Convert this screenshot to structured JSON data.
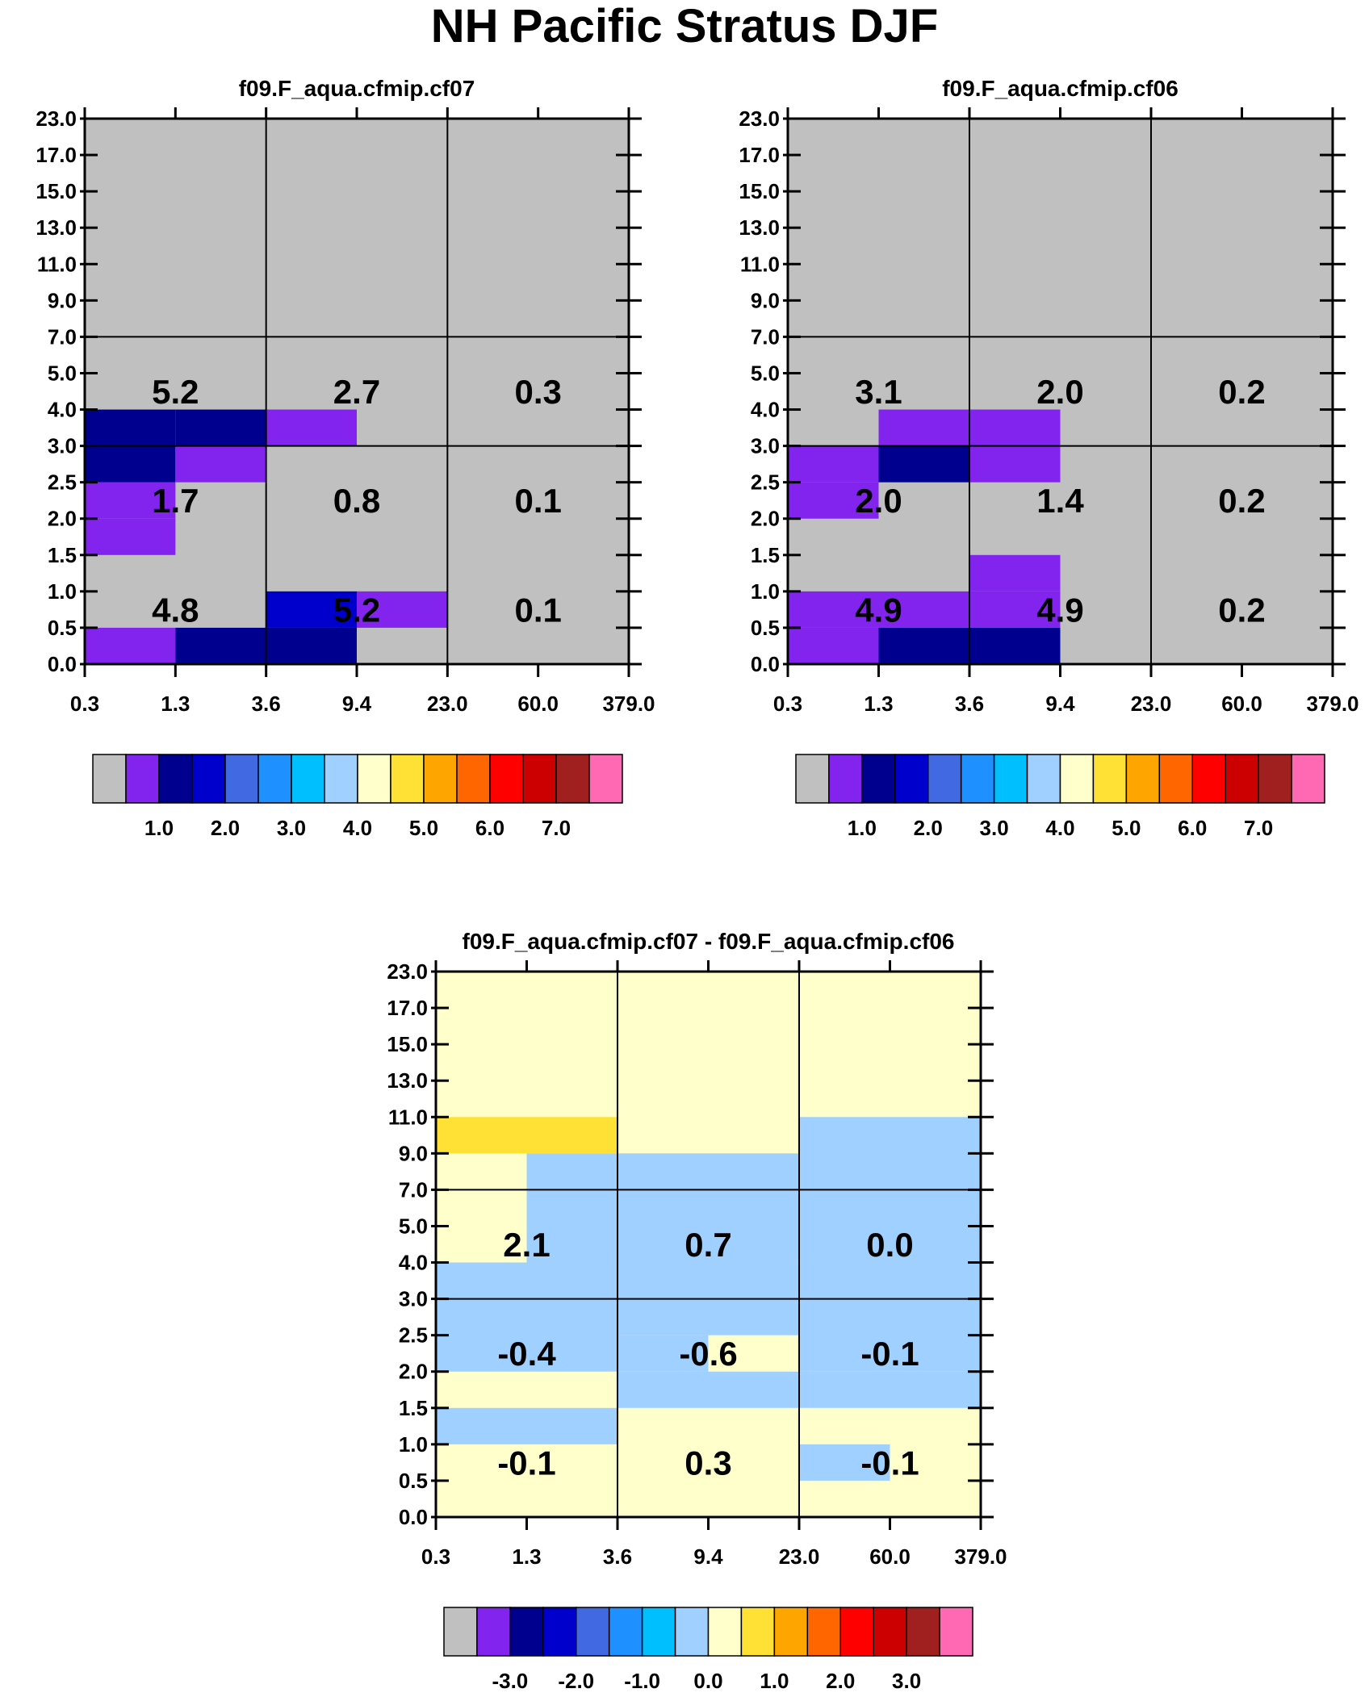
{
  "figure_title": "NH Pacific Stratus DJF",
  "y_tick_labels": [
    "0.0",
    "0.5",
    "1.0",
    "1.5",
    "2.0",
    "2.5",
    "3.0",
    "4.0",
    "5.0",
    "7.0",
    "9.0",
    "11.0",
    "13.0",
    "15.0",
    "17.0",
    "23.0"
  ],
  "x_tick_labels": [
    "0.3",
    "1.3",
    "3.6",
    "9.4",
    "23.0",
    "60.0",
    "379.0"
  ],
  "colors": {
    "fill_value": "#c0c0c0",
    "abs_palette": [
      "#c0c0c0",
      "#8224ee",
      "#00008f",
      "#0000cd",
      "#4169e1",
      "#1e90ff",
      "#00bfff",
      "#a0d0ff",
      "#ffffcc",
      "#ffe135",
      "#ffa500",
      "#ff6600",
      "#ff0000",
      "#cc0000",
      "#a02020",
      "#ff69b4"
    ],
    "diff_palette": [
      "#c0c0c0",
      "#8224ee",
      "#00008f",
      "#0000cd",
      "#4169e1",
      "#1e90ff",
      "#00bfff",
      "#a0d0ff",
      "#ffffcc",
      "#ffe135",
      "#ffa500",
      "#ff6600",
      "#ff0000",
      "#cc0000",
      "#a02020",
      "#ff69b4"
    ]
  },
  "chart_data": [
    {
      "type": "heatmap",
      "title": "f09.F_aqua.cfmip.cf07",
      "x_bins": [
        "0.3",
        "1.3",
        "3.6",
        "9.4",
        "23.0",
        "60.0",
        "379.0"
      ],
      "y_bins": [
        "0.0",
        "0.5",
        "1.0",
        "1.5",
        "2.0",
        "2.5",
        "3.0",
        "4.0",
        "5.0",
        "7.0",
        "9.0",
        "11.0",
        "13.0",
        "15.0",
        "17.0",
        "23.0"
      ],
      "colored_cells": [
        {
          "x": [
            0,
            1
          ],
          "y": [
            0,
            1
          ],
          "level": 1
        },
        {
          "x": [
            1,
            2
          ],
          "y": [
            0,
            1
          ],
          "level": 2
        },
        {
          "x": [
            2,
            3
          ],
          "y": [
            0,
            1
          ],
          "level": 2
        },
        {
          "x": [
            2,
            3
          ],
          "y": [
            1,
            2
          ],
          "level": 3
        },
        {
          "x": [
            3,
            4
          ],
          "y": [
            1,
            2
          ],
          "level": 1
        },
        {
          "x": [
            0,
            1
          ],
          "y": [
            3,
            4
          ],
          "level": 1
        },
        {
          "x": [
            0,
            1
          ],
          "y": [
            4,
            5
          ],
          "level": 1
        },
        {
          "x": [
            0,
            1
          ],
          "y": [
            5,
            6
          ],
          "level": 2
        },
        {
          "x": [
            1,
            2
          ],
          "y": [
            5,
            6
          ],
          "level": 1
        },
        {
          "x": [
            0,
            1
          ],
          "y": [
            6,
            7
          ],
          "level": 2
        },
        {
          "x": [
            1,
            2
          ],
          "y": [
            6,
            7
          ],
          "level": 2
        },
        {
          "x": [
            2,
            3
          ],
          "y": [
            6,
            7
          ],
          "level": 1
        }
      ],
      "block_values": [
        {
          "cx": 0,
          "cy": 2,
          "value": "5.2"
        },
        {
          "cx": 1,
          "cy": 2,
          "value": "2.7"
        },
        {
          "cx": 2,
          "cy": 2,
          "value": "0.3"
        },
        {
          "cx": 0,
          "cy": 1,
          "value": "1.7"
        },
        {
          "cx": 1,
          "cy": 1,
          "value": "0.8"
        },
        {
          "cx": 2,
          "cy": 1,
          "value": "0.1"
        },
        {
          "cx": 0,
          "cy": 0,
          "value": "4.8"
        },
        {
          "cx": 1,
          "cy": 0,
          "value": "5.2"
        },
        {
          "cx": 2,
          "cy": 0,
          "value": "0.1"
        }
      ],
      "colorbar_labels": [
        "1.0",
        "2.0",
        "3.0",
        "4.0",
        "5.0",
        "6.0",
        "7.0"
      ]
    },
    {
      "type": "heatmap",
      "title": "f09.F_aqua.cfmip.cf06",
      "x_bins": [
        "0.3",
        "1.3",
        "3.6",
        "9.4",
        "23.0",
        "60.0",
        "379.0"
      ],
      "y_bins": [
        "0.0",
        "0.5",
        "1.0",
        "1.5",
        "2.0",
        "2.5",
        "3.0",
        "4.0",
        "5.0",
        "7.0",
        "9.0",
        "11.0",
        "13.0",
        "15.0",
        "17.0",
        "23.0"
      ],
      "colored_cells": [
        {
          "x": [
            0,
            1
          ],
          "y": [
            0,
            1
          ],
          "level": 1
        },
        {
          "x": [
            1,
            2
          ],
          "y": [
            0,
            1
          ],
          "level": 2
        },
        {
          "x": [
            2,
            3
          ],
          "y": [
            0,
            1
          ],
          "level": 2
        },
        {
          "x": [
            0,
            1
          ],
          "y": [
            1,
            2
          ],
          "level": 1
        },
        {
          "x": [
            1,
            2
          ],
          "y": [
            1,
            2
          ],
          "level": 1
        },
        {
          "x": [
            2,
            3
          ],
          "y": [
            1,
            2
          ],
          "level": 1
        },
        {
          "x": [
            2,
            3
          ],
          "y": [
            2,
            3
          ],
          "level": 1
        },
        {
          "x": [
            0,
            1
          ],
          "y": [
            4,
            5
          ],
          "level": 1
        },
        {
          "x": [
            0,
            1
          ],
          "y": [
            5,
            6
          ],
          "level": 1
        },
        {
          "x": [
            1,
            2
          ],
          "y": [
            5,
            6
          ],
          "level": 2
        },
        {
          "x": [
            2,
            3
          ],
          "y": [
            5,
            6
          ],
          "level": 1
        },
        {
          "x": [
            1,
            2
          ],
          "y": [
            6,
            7
          ],
          "level": 1
        },
        {
          "x": [
            2,
            3
          ],
          "y": [
            6,
            7
          ],
          "level": 1
        }
      ],
      "block_values": [
        {
          "cx": 0,
          "cy": 2,
          "value": "3.1"
        },
        {
          "cx": 1,
          "cy": 2,
          "value": "2.0"
        },
        {
          "cx": 2,
          "cy": 2,
          "value": "0.2"
        },
        {
          "cx": 0,
          "cy": 1,
          "value": "2.0"
        },
        {
          "cx": 1,
          "cy": 1,
          "value": "1.4"
        },
        {
          "cx": 2,
          "cy": 1,
          "value": "0.2"
        },
        {
          "cx": 0,
          "cy": 0,
          "value": "4.9"
        },
        {
          "cx": 1,
          "cy": 0,
          "value": "4.9"
        },
        {
          "cx": 2,
          "cy": 0,
          "value": "0.2"
        }
      ],
      "colorbar_labels": [
        "1.0",
        "2.0",
        "3.0",
        "4.0",
        "5.0",
        "6.0",
        "7.0"
      ]
    },
    {
      "type": "heatmap",
      "title": "f09.F_aqua.cfmip.cf07 - f09.F_aqua.cfmip.cf06",
      "x_bins": [
        "0.3",
        "1.3",
        "3.6",
        "9.4",
        "23.0",
        "60.0",
        "379.0"
      ],
      "y_bins": [
        "0.0",
        "0.5",
        "1.0",
        "1.5",
        "2.0",
        "2.5",
        "3.0",
        "4.0",
        "5.0",
        "7.0",
        "9.0",
        "11.0",
        "13.0",
        "15.0",
        "17.0",
        "23.0"
      ],
      "background_level": 8,
      "colored_cells": [
        {
          "x": [
            4,
            5
          ],
          "y": [
            1,
            2
          ],
          "level": 7
        },
        {
          "x": [
            0,
            2
          ],
          "y": [
            2,
            3
          ],
          "level": 7
        },
        {
          "x": [
            2,
            4
          ],
          "y": [
            3,
            4
          ],
          "level": 7
        },
        {
          "x": [
            4,
            6
          ],
          "y": [
            3,
            4
          ],
          "level": 7
        },
        {
          "x": [
            0,
            2
          ],
          "y": [
            4,
            6
          ],
          "level": 7
        },
        {
          "x": [
            2,
            3
          ],
          "y": [
            4,
            5
          ],
          "level": 7
        },
        {
          "x": [
            4,
            6
          ],
          "y": [
            4,
            6
          ],
          "level": 7
        },
        {
          "x": [
            2,
            6
          ],
          "y": [
            5,
            6
          ],
          "level": 7
        },
        {
          "x": [
            0,
            6
          ],
          "y": [
            6,
            7
          ],
          "level": 7
        },
        {
          "x": [
            1,
            6
          ],
          "y": [
            7,
            9
          ],
          "level": 7
        },
        {
          "x": [
            1,
            4
          ],
          "y": [
            9,
            10
          ],
          "level": 7
        },
        {
          "x": [
            4,
            6
          ],
          "y": [
            9,
            11
          ],
          "level": 7
        },
        {
          "x": [
            0,
            2
          ],
          "y": [
            10,
            11
          ],
          "level": 9
        }
      ],
      "block_values": [
        {
          "cx": 0,
          "cy": 2,
          "value": "2.1"
        },
        {
          "cx": 1,
          "cy": 2,
          "value": "0.7"
        },
        {
          "cx": 2,
          "cy": 2,
          "value": "0.0"
        },
        {
          "cx": 0,
          "cy": 1,
          "value": "-0.4"
        },
        {
          "cx": 1,
          "cy": 1,
          "value": "-0.6"
        },
        {
          "cx": 2,
          "cy": 1,
          "value": "-0.1"
        },
        {
          "cx": 0,
          "cy": 0,
          "value": "-0.1"
        },
        {
          "cx": 1,
          "cy": 0,
          "value": "0.3"
        },
        {
          "cx": 2,
          "cy": 0,
          "value": "-0.1"
        }
      ],
      "colorbar_labels": [
        "-3.0",
        "-2.0",
        "-1.0",
        "0.0",
        "1.0",
        "2.0",
        "3.0"
      ]
    }
  ]
}
